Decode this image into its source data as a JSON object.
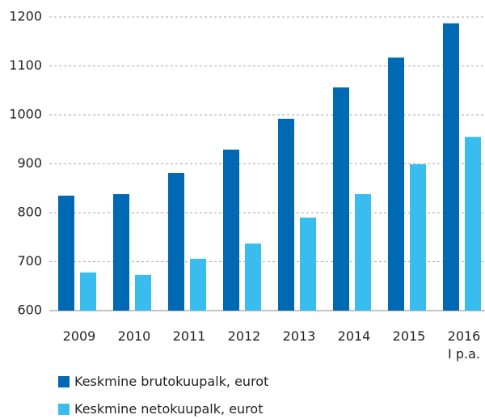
{
  "chart_data": {
    "type": "bar",
    "categories": [
      "2009",
      "2010",
      "2011",
      "2012",
      "2013",
      "2014",
      "2015",
      "2016\nI p.a."
    ],
    "series": [
      {
        "name": "Keskmine brutokuupalk, eurot",
        "color": "#0069b4",
        "values": [
          835,
          838,
          881,
          929,
          992,
          1056,
          1117,
          1187
        ]
      },
      {
        "name": "Keskmine netokuupalk, eurot",
        "color": "#38bdee",
        "values": [
          678,
          673,
          706,
          737,
          790,
          838,
          899,
          955
        ]
      }
    ],
    "ylim": [
      600,
      1200
    ],
    "yticks": [
      600,
      700,
      800,
      900,
      1000,
      1100,
      1200
    ],
    "grid": true
  }
}
